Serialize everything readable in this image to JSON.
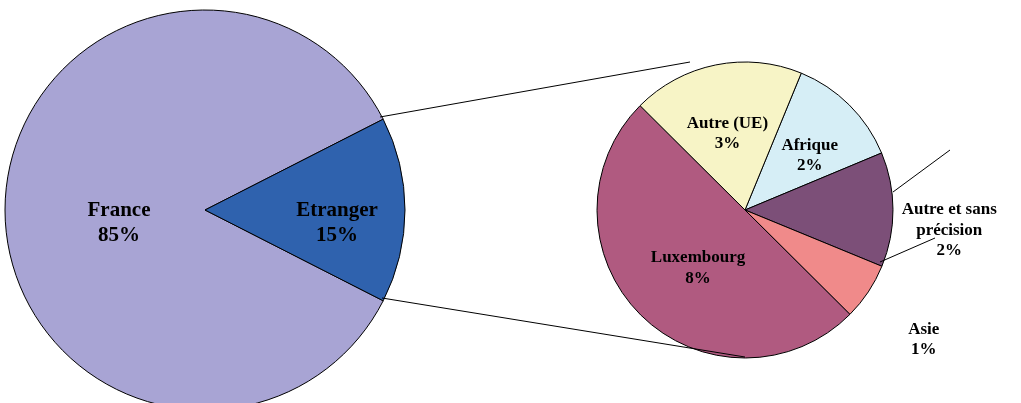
{
  "chart_data": [
    {
      "type": "pie",
      "categories": [
        "France",
        "Etranger"
      ],
      "values": [
        85,
        15
      ],
      "colors": [
        "#a8a4d4",
        "#2f62ae"
      ],
      "value_labels": [
        "85%",
        "15%"
      ]
    },
    {
      "type": "pie",
      "categories": [
        "Afrique",
        "Autre et sans précision",
        "Asie",
        "Luxembourg",
        "Autre (UE)"
      ],
      "values": [
        2,
        2,
        1,
        8,
        3
      ],
      "colors": [
        "#d6eef6",
        "#7c4f78",
        "#f08a8a",
        "#b05a80",
        "#f7f4c6"
      ],
      "value_labels": [
        "2%",
        "2%",
        "1%",
        "8%",
        "3%"
      ]
    }
  ]
}
